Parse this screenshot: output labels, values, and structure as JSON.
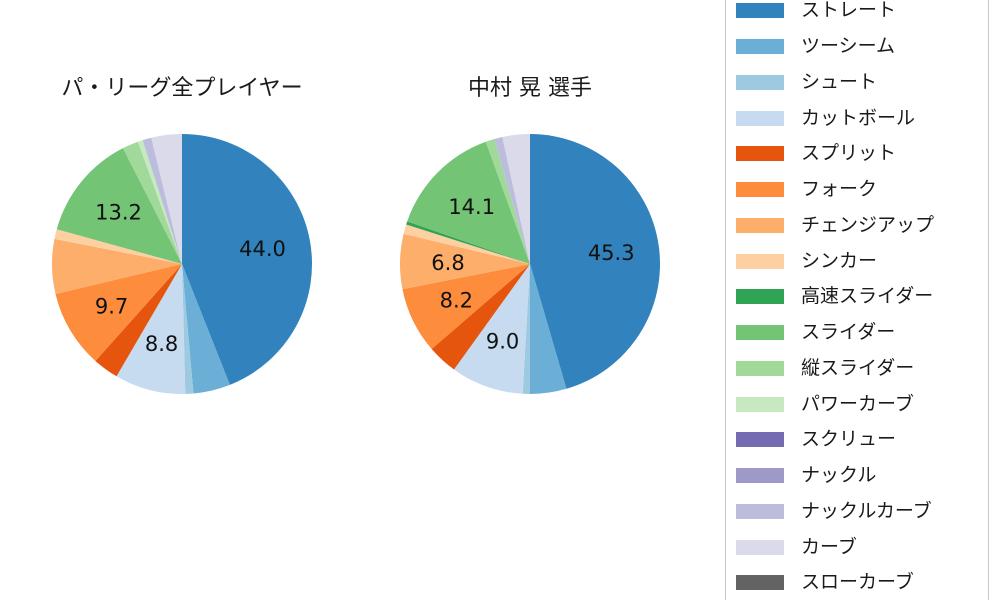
{
  "chart_data": {
    "type": "pie",
    "layout_hint": "two pie charts side by side, shared legend on the right, slices start at 12 o'clock and run clockwise, percentage labels shown only on larger slices",
    "categories": [
      "ストレート",
      "ツーシーム",
      "シュート",
      "カットボール",
      "スプリット",
      "フォーク",
      "チェンジアップ",
      "シンカー",
      "高速スライダー",
      "スライダー",
      "縦スライダー",
      "パワーカーブ",
      "スクリュー",
      "ナックル",
      "ナックルカーブ",
      "カーブ",
      "スローカーブ"
    ],
    "colors": [
      "#3182bd",
      "#6baed6",
      "#9ecae1",
      "#c6dbef",
      "#e6550d",
      "#fd8d3c",
      "#fdae6b",
      "#fdd0a2",
      "#31a354",
      "#74c476",
      "#a1d99b",
      "#c7e9c0",
      "#756bb1",
      "#9e9ac8",
      "#bcbddc",
      "#dadaeb",
      "#636363"
    ],
    "series": [
      {
        "name": "パ・リーグ全プレイヤー",
        "values": [
          44.0,
          4.6,
          1.0,
          8.8,
          3.2,
          9.7,
          6.8,
          1.2,
          0,
          13.2,
          2.0,
          0.6,
          0,
          0,
          1.1,
          3.8,
          0
        ],
        "value_labels": [
          "44.0",
          "",
          "",
          "8.8",
          "",
          "9.7",
          "",
          "",
          "",
          "13.2",
          "",
          "",
          "",
          "",
          "",
          "",
          ""
        ]
      },
      {
        "name": "中村 晃 選手",
        "values": [
          45.3,
          4.5,
          0.9,
          9.0,
          3.7,
          8.2,
          6.8,
          1.2,
          0.4,
          14.1,
          1.1,
          0,
          0,
          0,
          1.0,
          3.4,
          0
        ],
        "value_labels": [
          "45.3",
          "",
          "",
          "9.0",
          "",
          "8.2",
          "6.8",
          "",
          "",
          "14.1",
          "",
          "",
          "",
          "",
          "",
          "",
          ""
        ]
      }
    ],
    "legend_position": "right",
    "text_color": "#1a1a1a",
    "legend_border_color": "#c8c8c8"
  }
}
